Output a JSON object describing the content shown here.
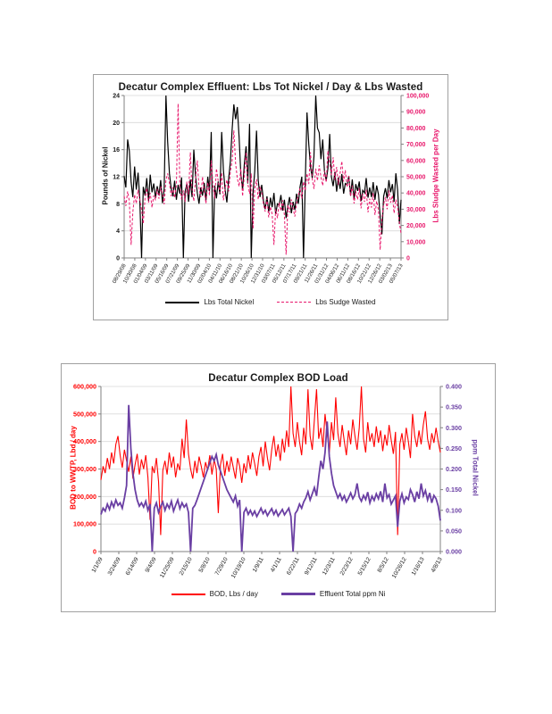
{
  "chart_data": [
    {
      "type": "line",
      "title": "Decatur Complex Effluent:  Lbs Tot Nickel / Day & Lbs Wasted",
      "y_left": {
        "label": "Pounds of  Nickel",
        "color": "#1a1a1a",
        "min": 0,
        "max": 24,
        "ticks": [
          "24",
          "20",
          "16",
          "12",
          "8",
          "4",
          "0"
        ]
      },
      "y_right": {
        "label": "Lbs Sludge Wasted per Day",
        "color": "#e8186c",
        "min": 0,
        "max": 100000,
        "ticks": [
          "100,000",
          "90,000",
          "80,000",
          "70,000",
          "60,000",
          "50,000",
          "40,000",
          "30,000",
          "20,000",
          "10,000",
          "0"
        ]
      },
      "x_ticks": [
        "08/29/08",
        "10/30/08",
        "01/04/09",
        "03/11/09",
        "05/16/09",
        "07/21/09",
        "09/25/09",
        "11/30/09",
        "02/04/10",
        "04/11/10",
        "06/16/10",
        "08/21/10",
        "10/26/10",
        "12/31/10",
        "03/07/11",
        "05/12/11",
        "07/17/11",
        "09/21/11",
        "11/26/11",
        "01/31/12",
        "04/06/12",
        "06/11/12",
        "08/16/12",
        "10/21/12",
        "12/26/12",
        "03/02/13",
        "05/07/13"
      ],
      "grid": true,
      "legend": [
        {
          "label": "Lbs Total Nickel",
          "color": "#000000",
          "style": "solid",
          "weight": 2
        },
        {
          "label": "Lbs Sudge Wasted",
          "color": "#e8186c",
          "style": "dashed",
          "weight": 1
        }
      ],
      "series": [
        {
          "name": "Lbs Total Nickel",
          "axis": "left",
          "color": "#000000",
          "width": 1.2,
          "dash": "",
          "values": [
            12.1,
            10.4,
            17.5,
            15.8,
            11.2,
            9.0,
            13.5,
            10.1,
            12.6,
            8.7,
            0.0,
            10.5,
            9.2,
            11.8,
            8.4,
            12.3,
            9.7,
            11.0,
            8.9,
            10.6,
            9.3,
            11.5,
            8.1,
            10.2,
            24.0,
            17.2,
            12.5,
            10.3,
            9.1,
            11.4,
            8.6,
            10.8,
            9.5,
            11.9,
            0.0,
            9.8,
            10.9,
            8.3,
            11.6,
            9.0,
            16.0,
            12.2,
            9.6,
            8.0,
            10.4,
            9.2,
            11.1,
            8.5,
            12.0,
            9.9,
            18.6,
            0.0,
            10.7,
            8.8,
            11.3,
            9.4,
            18.6,
            13.0,
            10.0,
            8.2,
            11.7,
            14.2,
            19.0,
            22.7,
            20.5,
            22.3,
            17.8,
            12.4,
            10.1,
            13.8,
            16.5,
            11.0,
            19.8,
            0.0,
            9.6,
            12.8,
            18.8,
            11.5,
            9.0,
            10.8,
            8.4,
            7.2,
            9.1,
            6.8,
            8.9,
            7.5,
            9.6,
            6.5,
            8.0,
            7.8,
            9.3,
            7.0,
            8.6,
            5.9,
            7.7,
            9.0,
            6.6,
            8.3,
            7.1,
            9.5,
            8.0,
            10.5,
            12.0,
            0.0,
            11.2,
            21.5,
            16.8,
            13.5,
            11.8,
            15.0,
            24.0,
            19.2,
            18.5,
            14.6,
            17.5,
            12.9,
            11.4,
            13.2,
            18.3,
            12.0,
            10.6,
            12.7,
            9.8,
            11.9,
            10.2,
            12.4,
            9.5,
            11.0,
            10.8,
            12.1,
            9.2,
            11.6,
            8.7,
            10.9,
            9.9,
            11.3,
            8.4,
            10.0,
            9.6,
            11.8,
            8.9,
            10.4,
            9.0,
            11.2,
            8.6,
            10.7,
            9.4,
            6.2,
            3.5,
            9.1,
            10.3,
            8.8,
            11.5,
            9.7,
            10.9,
            8.3,
            12.5,
            10.1,
            5.0,
            8.6
          ]
        },
        {
          "name": "Lbs Sudge Wasted",
          "axis": "right",
          "color": "#e8186c",
          "width": 1,
          "dash": "3,2",
          "values": [
            38000,
            32000,
            41000,
            35000,
            8000,
            28000,
            39000,
            33500,
            42000,
            36000,
            30000,
            21000,
            37000,
            43000,
            34000,
            40000,
            31000,
            38500,
            35500,
            42500,
            36500,
            44000,
            39500,
            33000,
            48000,
            52000,
            46000,
            38000,
            43500,
            37000,
            45000,
            95000,
            44000,
            36000,
            41500,
            34500,
            47000,
            39000,
            65000,
            42000,
            35000,
            48500,
            60000,
            43000,
            37500,
            50000,
            41000,
            33500,
            46500,
            38500,
            60000,
            44500,
            36500,
            55000,
            47500,
            40000,
            52500,
            35500,
            43000,
            48000,
            41000,
            53000,
            60000,
            78500,
            58000,
            49000,
            44000,
            55000,
            38000,
            50500,
            65000,
            46000,
            39500,
            52000,
            18000,
            42500,
            48500,
            36000,
            44000,
            40500,
            33000,
            28500,
            36500,
            25000,
            31500,
            27000,
            8000,
            30000,
            24500,
            34000,
            29000,
            35500,
            26500,
            2000,
            32500,
            28000,
            36000,
            30500,
            25500,
            33500,
            38500,
            43000,
            36500,
            47000,
            41500,
            52000,
            45500,
            65000,
            48500,
            42500,
            55000,
            47500,
            57000,
            50000,
            44500,
            53500,
            46500,
            66000,
            58500,
            51000,
            62000,
            48000,
            56000,
            45000,
            52500,
            59500,
            47000,
            54000,
            43500,
            50500,
            38000,
            44500,
            33500,
            41000,
            36000,
            43000,
            30500,
            39500,
            34500,
            42000,
            28000,
            36500,
            31000,
            40000,
            26500,
            35000,
            29500,
            5000,
            24000,
            33000,
            37500,
            30000,
            41500,
            34000,
            38500,
            27500,
            36000,
            31500,
            22000,
            15000
          ]
        }
      ]
    },
    {
      "type": "line",
      "title": "Decatur Complex BOD Load",
      "y_left": {
        "label": "BOD to WWTP, Lbd / day",
        "color": "#ff0000",
        "min": 0,
        "max": 600000,
        "ticks": [
          "600,000",
          "500,000",
          "400,000",
          "300,000",
          "200,000",
          "100,000",
          "0"
        ]
      },
      "y_right": {
        "label": "ppm Total Nickel",
        "color": "#6a3fa3",
        "min": 0,
        "max": 0.4,
        "ticks": [
          "0.400",
          "0.350",
          "0.300",
          "0.250",
          "0.200",
          "0.150",
          "0.100",
          "0.050",
          "0.000"
        ]
      },
      "x_ticks": [
        "1/1/09",
        "3/24/09",
        "6/14/09",
        "9/4/09",
        "11/25/09",
        "2/15/10",
        "5/8/10",
        "7/29/10",
        "10/19/10",
        "1/9/11",
        "4/1/11",
        "6/22/11",
        "9/12/11",
        "12/3/11",
        "2/23/12",
        "5/15/12",
        "8/5/12",
        "10/26/12",
        "1/16/13",
        "4/8/13"
      ],
      "grid": true,
      "legend": [
        {
          "label": "BOD, Lbs / day",
          "color": "#ff0000",
          "style": "solid",
          "weight": 2
        },
        {
          "label": "Effluent Total ppm Ni",
          "color": "#6a3fa3",
          "style": "solid",
          "weight": 3
        }
      ],
      "series": [
        {
          "name": "BOD, Lbs / day",
          "axis": "left",
          "color": "#ff0000",
          "width": 1.1,
          "dash": "",
          "values": [
            260000,
            310000,
            285000,
            340000,
            300000,
            360000,
            320000,
            390000,
            420000,
            350000,
            305000,
            370000,
            330000,
            290000,
            345000,
            265000,
            315000,
            355000,
            280000,
            335000,
            300000,
            350000,
            270000,
            115000,
            310000,
            285000,
            340000,
            255000,
            60000,
            295000,
            330000,
            280000,
            360000,
            305000,
            345000,
            270000,
            320000,
            295000,
            410000,
            340000,
            480000,
            355000,
            300000,
            265000,
            330000,
            285000,
            345000,
            310000,
            270000,
            325000,
            295000,
            350000,
            280000,
            335000,
            300000,
            140000,
            315000,
            355000,
            275000,
            330000,
            290000,
            345000,
            305000,
            265000,
            340000,
            310000,
            250000,
            320000,
            285000,
            350000,
            300000,
            360000,
            320000,
            275000,
            345000,
            380000,
            310000,
            400000,
            340000,
            295000,
            370000,
            420000,
            345000,
            390000,
            330000,
            410000,
            360000,
            440000,
            380000,
            600000,
            430000,
            380000,
            470000,
            400000,
            350000,
            450000,
            390000,
            590000,
            420000,
            370000,
            480000,
            590000,
            410000,
            450000,
            380000,
            500000,
            430000,
            360000,
            470000,
            405000,
            560000,
            430000,
            380000,
            460000,
            400000,
            350000,
            440000,
            390000,
            480000,
            420000,
            370000,
            450000,
            600000,
            410000,
            360000,
            470000,
            400000,
            430000,
            380000,
            455000,
            395000,
            440000,
            365000,
            425000,
            385000,
            460000,
            405000,
            355000,
            435000,
            60000,
            390000,
            430000,
            370000,
            450000,
            400000,
            340000,
            500000,
            420000,
            380000,
            440000,
            390000,
            460000,
            510000,
            410000,
            370000,
            430000,
            395000,
            450000,
            400000,
            360000
          ]
        },
        {
          "name": "Effluent Total ppm Ni",
          "axis": "right",
          "color": "#6a3fa3",
          "width": 1.8,
          "dash": "",
          "values": [
            0.09,
            0.105,
            0.098,
            0.115,
            0.102,
            0.12,
            0.108,
            0.125,
            0.112,
            0.118,
            0.105,
            0.13,
            0.16,
            0.355,
            0.25,
            0.19,
            0.15,
            0.125,
            0.11,
            0.118,
            0.108,
            0.122,
            0.1,
            0.115,
            0.0,
            0.105,
            0.118,
            0.095,
            0.11,
            0.12,
            0.1,
            0.115,
            0.105,
            0.122,
            0.098,
            0.112,
            0.125,
            0.104,
            0.118,
            0.108,
            0.115,
            0.095,
            0.0,
            0.105,
            0.112,
            0.125,
            0.14,
            0.155,
            0.17,
            0.185,
            0.2,
            0.215,
            0.23,
            0.22,
            0.235,
            0.21,
            0.195,
            0.18,
            0.165,
            0.15,
            0.14,
            0.13,
            0.12,
            0.135,
            0.11,
            0.125,
            0.0,
            0.095,
            0.105,
            0.09,
            0.1,
            0.088,
            0.098,
            0.085,
            0.095,
            0.105,
            0.092,
            0.1,
            0.087,
            0.096,
            0.104,
            0.09,
            0.1,
            0.086,
            0.094,
            0.102,
            0.089,
            0.097,
            0.105,
            0.085,
            0.0,
            0.092,
            0.1,
            0.115,
            0.105,
            0.12,
            0.13,
            0.145,
            0.125,
            0.14,
            0.155,
            0.135,
            0.18,
            0.22,
            0.2,
            0.24,
            0.315,
            0.23,
            0.19,
            0.16,
            0.145,
            0.13,
            0.14,
            0.125,
            0.135,
            0.12,
            0.13,
            0.142,
            0.128,
            0.138,
            0.165,
            0.132,
            0.122,
            0.136,
            0.126,
            0.144,
            0.118,
            0.134,
            0.124,
            0.14,
            0.128,
            0.146,
            0.12,
            0.165,
            0.13,
            0.138,
            0.115,
            0.125,
            0.135,
            0.06,
            0.122,
            0.14,
            0.118,
            0.132,
            0.126,
            0.15,
            0.138,
            0.12,
            0.145,
            0.128,
            0.165,
            0.135,
            0.148,
            0.125,
            0.142,
            0.118,
            0.136,
            0.128,
            0.11,
            0.075
          ]
        }
      ]
    }
  ]
}
